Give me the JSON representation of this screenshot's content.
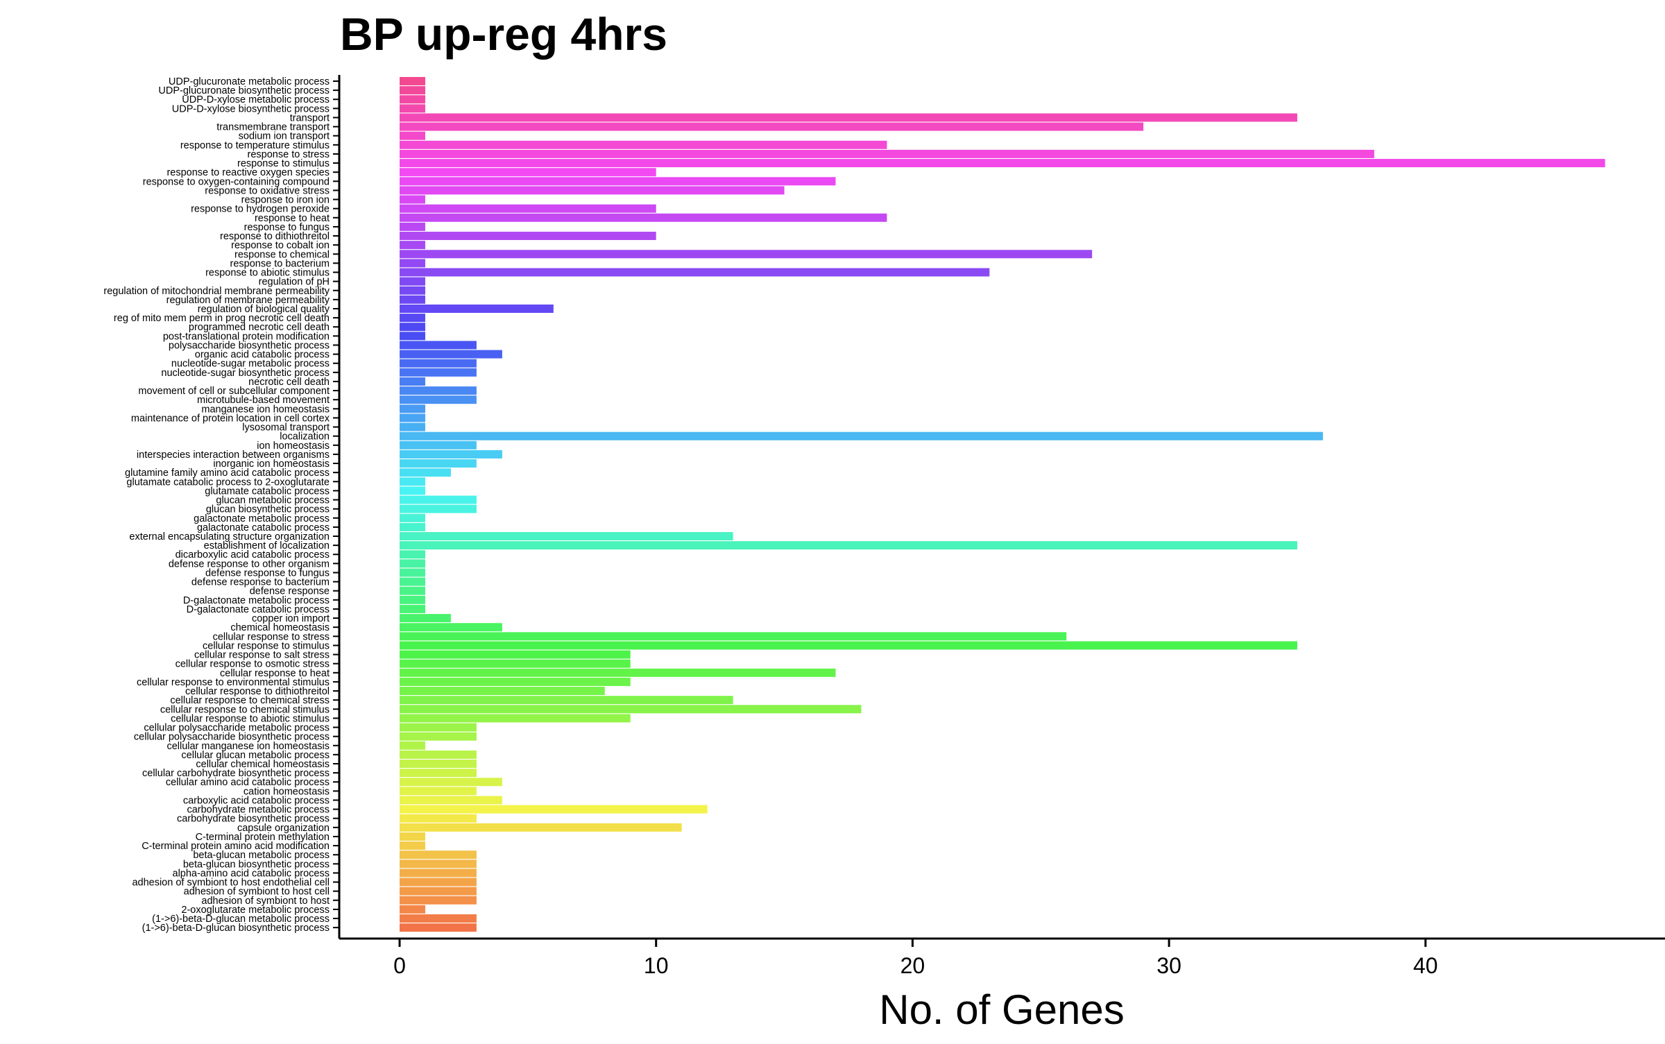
{
  "chart_data": {
    "type": "bar",
    "orientation": "horizontal",
    "title": "BP up-reg 4hrs",
    "xlabel": "No. of Genes",
    "ylabel": "",
    "xlim": [
      0,
      47
    ],
    "xticks": [
      0,
      10,
      20,
      30,
      40
    ],
    "grid": false,
    "legend": "none",
    "categories": [
      "UDP-glucuronate metabolic process",
      "UDP-glucuronate biosynthetic process",
      "UDP-D-xylose metabolic process",
      "UDP-D-xylose biosynthetic process",
      "transport",
      "transmembrane transport",
      "sodium ion transport",
      "response to temperature stimulus",
      "response to stress",
      "response to stimulus",
      "response to reactive oxygen species",
      "response to oxygen-containing compound",
      "response to oxidative stress",
      "response to iron ion",
      "response to hydrogen peroxide",
      "response to heat",
      "response to fungus",
      "response to dithiothreitol",
      "response to cobalt ion",
      "response to chemical",
      "response to bacterium",
      "response to abiotic stimulus",
      "regulation of pH",
      "regulation of mitochondrial membrane permeability",
      "regulation of membrane permeability",
      "regulation of biological quality",
      "reg of mito mem perm in prog necrotic cell death",
      "programmed necrotic cell death",
      "post-translational protein modification",
      "polysaccharide biosynthetic process",
      "organic acid catabolic process",
      "nucleotide-sugar metabolic process",
      "nucleotide-sugar biosynthetic process",
      "necrotic cell death",
      "movement of cell or subcellular component",
      "microtubule-based movement",
      "manganese ion homeostasis",
      "maintenance of protein location in cell cortex",
      "lysosomal transport",
      "localization",
      "ion homeostasis",
      "interspecies interaction between organisms",
      "inorganic ion homeostasis",
      "glutamine family amino acid catabolic process",
      "glutamate catabolic process to 2-oxoglutarate",
      "glutamate catabolic process",
      "glucan metabolic process",
      "glucan biosynthetic process",
      "galactonate metabolic process",
      "galactonate catabolic process",
      "external encapsulating structure organization",
      "establishment of localization",
      "dicarboxylic acid catabolic process",
      "defense response to other organism",
      "defense response to fungus",
      "defense response to bacterium",
      "defense response",
      "D-galactonate metabolic process",
      "D-galactonate catabolic process",
      "copper ion import",
      "chemical homeostasis",
      "cellular response to stress",
      "cellular response to stimulus",
      "cellular response to salt stress",
      "cellular response to osmotic stress",
      "cellular response to heat",
      "cellular response to environmental stimulus",
      "cellular response to dithiothreitol",
      "cellular response to chemical stress",
      "cellular response to chemical stimulus",
      "cellular response to abiotic stimulus",
      "cellular polysaccharide metabolic process",
      "cellular polysaccharide biosynthetic process",
      "cellular manganese ion homeostasis",
      "cellular glucan metabolic process",
      "cellular chemical homeostasis",
      "cellular carbohydrate biosynthetic process",
      "cellular amino acid catabolic process",
      "cation homeostasis",
      "carboxylic acid catabolic process",
      "carbohydrate metabolic process",
      "carbohydrate biosynthetic process",
      "capsule organization",
      "C-terminal protein methylation",
      "C-terminal protein amino acid modification",
      "beta-glucan metabolic process",
      "beta-glucan biosynthetic process",
      "alpha-amino acid catabolic process",
      "adhesion of symbiont to host endothelial cell",
      "adhesion of symbiont to host cell",
      "adhesion of symbiont to host",
      "2-oxoglutarate metabolic process",
      "(1->6)-beta-D-glucan metabolic process",
      "(1->6)-beta-D-glucan biosynthetic process"
    ],
    "values": [
      1,
      1,
      1,
      1,
      35,
      29,
      1,
      19,
      38,
      47,
      10,
      17,
      15,
      1,
      10,
      19,
      1,
      10,
      1,
      27,
      1,
      23,
      1,
      1,
      1,
      6,
      1,
      1,
      1,
      3,
      4,
      3,
      3,
      1,
      3,
      3,
      1,
      1,
      1,
      36,
      3,
      4,
      3,
      2,
      1,
      1,
      3,
      3,
      1,
      1,
      13,
      35,
      1,
      1,
      1,
      1,
      1,
      1,
      1,
      2,
      4,
      26,
      35,
      9,
      9,
      17,
      9,
      8,
      13,
      18,
      9,
      3,
      3,
      1,
      3,
      3,
      3,
      4,
      3,
      4,
      12,
      3,
      11,
      1,
      1,
      3,
      3,
      3,
      3,
      3,
      3,
      1,
      3,
      3
    ],
    "color_scheme": "hue gradient per category: #F8766D (bottom) through orange, olive, green, teal, #00B0F6, blue, purple to #FF62BC (top)"
  }
}
